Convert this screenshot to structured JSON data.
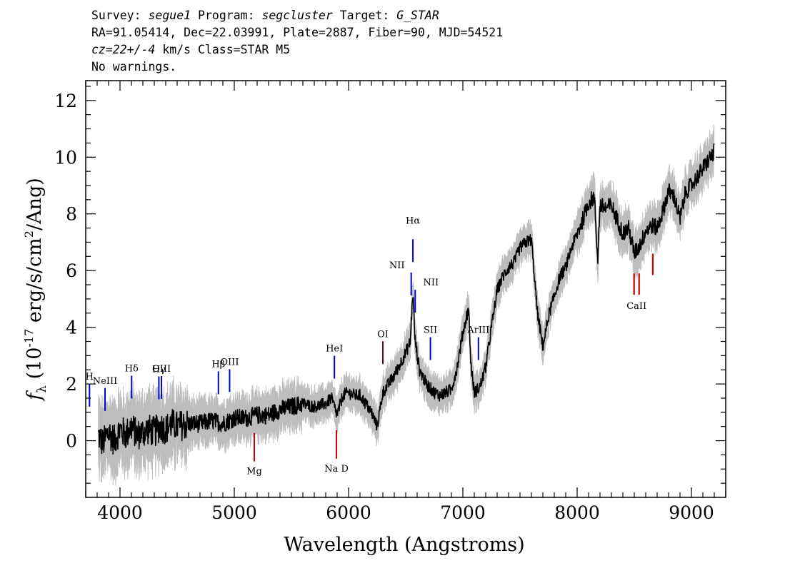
{
  "header": {
    "survey_prefix": "Survey: ",
    "survey": "segue1",
    "program_prefix": " Program: ",
    "program": "segcluster",
    "target_prefix": " Target: ",
    "target": "G_STAR",
    "line2": "RA=91.05414, Dec=22.03991, Plate=2887, Fiber=90, MJD=54521",
    "cz": "cz=22+/-4",
    "cz_suffix": " km/s Class=STAR M5",
    "line4": "No warnings."
  },
  "chart_data": {
    "type": "line",
    "xlabel": "Wavelength (Angstroms)",
    "ylabel": "f_λ (10^-17 erg/s/cm^2/Ang)",
    "xlim": [
      3700,
      9300
    ],
    "ylim": [
      -2.0,
      12.7
    ],
    "x_ticks": [
      4000,
      5000,
      6000,
      7000,
      8000,
      9000
    ],
    "x_tick_labels": [
      "4000",
      "5000",
      "6000",
      "7000",
      "8000",
      "9000"
    ],
    "y_ticks": [
      0,
      2,
      4,
      6,
      8,
      10,
      12
    ],
    "y_tick_labels": [
      "0",
      "2",
      "4",
      "6",
      "8",
      "10",
      "12"
    ],
    "colors": {
      "flux": "#000000",
      "error": "#bdbdbd",
      "emission": "#0000cc",
      "absorption": "#cc0000",
      "oxygen": "#660033"
    },
    "series": [
      {
        "role": "flux",
        "x": [
          3810,
          3850,
          3900,
          3950,
          4000,
          4050,
          4100,
          4150,
          4200,
          4250,
          4300,
          4350,
          4400,
          4450,
          4500,
          4600,
          4700,
          4800,
          4900,
          5000,
          5100,
          5200,
          5300,
          5400,
          5500,
          5600,
          5700,
          5800,
          5850,
          5900,
          5950,
          6000,
          6050,
          6100,
          6150,
          6200,
          6250,
          6300,
          6350,
          6400,
          6450,
          6500,
          6540,
          6563,
          6580,
          6620,
          6680,
          6750,
          6800,
          6850,
          6900,
          6950,
          7000,
          7050,
          7070,
          7100,
          7150,
          7200,
          7250,
          7300,
          7350,
          7400,
          7450,
          7500,
          7550,
          7600,
          7650,
          7700,
          7750,
          7800,
          7850,
          7900,
          7950,
          8000,
          8050,
          8100,
          8150,
          8180,
          8200,
          8250,
          8300,
          8350,
          8400,
          8450,
          8500,
          8550,
          8600,
          8650,
          8700,
          8750,
          8800,
          8850,
          8900,
          8950,
          9000,
          9050,
          9100,
          9150,
          9200
        ],
        "y": [
          0.2,
          -0.1,
          0.3,
          0.0,
          0.4,
          0.2,
          0.5,
          0.2,
          0.3,
          0.4,
          0.3,
          0.5,
          0.4,
          0.6,
          0.5,
          0.6,
          0.6,
          0.7,
          0.6,
          0.8,
          0.8,
          0.9,
          0.9,
          1.1,
          1.2,
          1.3,
          1.2,
          1.3,
          1.5,
          0.9,
          1.6,
          1.7,
          1.6,
          1.6,
          1.3,
          1.0,
          0.5,
          1.7,
          2.0,
          2.3,
          2.7,
          3.1,
          3.5,
          5.3,
          3.6,
          2.5,
          2.0,
          1.7,
          1.6,
          1.7,
          1.8,
          2.6,
          3.8,
          4.7,
          2.7,
          1.7,
          1.9,
          2.6,
          4.0,
          5.3,
          5.8,
          6.1,
          6.3,
          6.8,
          7.0,
          7.1,
          4.6,
          3.3,
          4.4,
          5.1,
          5.8,
          6.1,
          6.8,
          7.3,
          7.8,
          8.4,
          8.6,
          6.4,
          8.3,
          8.2,
          8.3,
          7.8,
          7.3,
          7.5,
          6.6,
          6.9,
          7.4,
          7.6,
          7.5,
          8.1,
          8.8,
          8.6,
          7.8,
          8.8,
          9.0,
          9.3,
          9.6,
          9.9,
          10.2
        ]
      }
    ],
    "line_markers": [
      {
        "label": "H",
        "x": 3733,
        "kind": "emission"
      },
      {
        "label": "NeIII",
        "x": 3869,
        "kind": "emission"
      },
      {
        "label": "Hδ",
        "x": 4102,
        "kind": "emission"
      },
      {
        "label": "Hγ",
        "x": 4340,
        "kind": "emission"
      },
      {
        "label": "OIII",
        "x": 4363,
        "kind": "emission"
      },
      {
        "label": "Hβ",
        "x": 4861,
        "kind": "emission"
      },
      {
        "label": "OIII",
        "x": 4959,
        "kind": "emission"
      },
      {
        "label": "HeI",
        "x": 5876,
        "kind": "emission"
      },
      {
        "label": "OI",
        "x": 6300,
        "kind": "oxygen"
      },
      {
        "label": "NII",
        "x": 6548,
        "kind": "emission"
      },
      {
        "label": "Hα",
        "x": 6563,
        "kind": "emission"
      },
      {
        "label": "NII",
        "x": 6583,
        "kind": "emission"
      },
      {
        "label": "SII",
        "x": 6716,
        "kind": "emission"
      },
      {
        "label": "ArIII",
        "x": 7136,
        "kind": "emission"
      },
      {
        "label": "Mg",
        "x": 5175,
        "kind": "absorption"
      },
      {
        "label": "Na D",
        "x": 5894,
        "kind": "absorption"
      },
      {
        "label": "CaII",
        "x": 8520,
        "kind": "absorption"
      }
    ]
  }
}
